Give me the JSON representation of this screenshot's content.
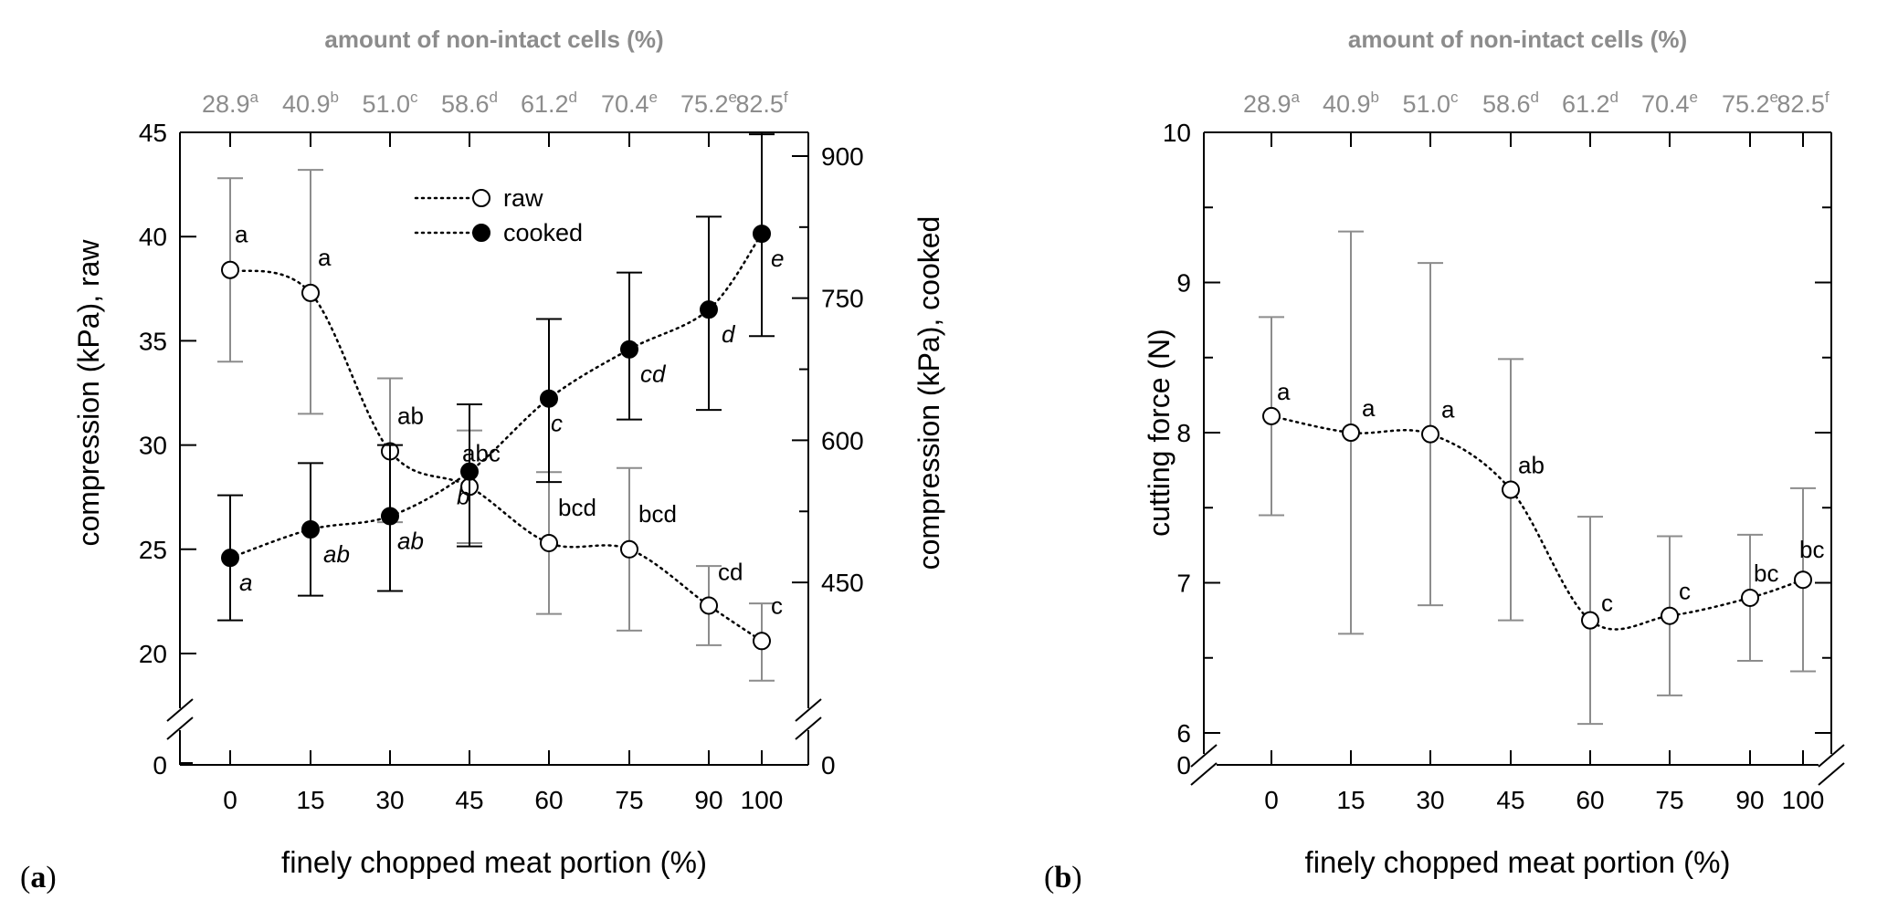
{
  "panels": [
    {
      "label_open": "(",
      "label_letter": "a",
      "label_close": ")"
    },
    {
      "label_open": "(",
      "label_letter": "b",
      "label_close": ")"
    }
  ],
  "colors": {
    "axis": "#000000",
    "grey_text": "#8c8c8c",
    "error_bar_raw": "#8c8c8c",
    "error_bar_cooked": "#000000"
  },
  "chart_data": [
    {
      "type": "line",
      "top_axis_title": "amount of non-intact cells (%)",
      "top_ticks": [
        {
          "v": "28.9",
          "s": "a"
        },
        {
          "v": "40.9",
          "s": "b"
        },
        {
          "v": "51.0",
          "s": "c"
        },
        {
          "v": "58.6",
          "s": "d"
        },
        {
          "v": "61.2",
          "s": "d"
        },
        {
          "v": "70.4",
          "s": "e"
        },
        {
          "v": "75.2",
          "s": "e"
        },
        {
          "v": "82.5",
          "s": "f"
        }
      ],
      "xlabel": "finely chopped meat portion  (%)",
      "categories": [
        "0",
        "15",
        "30",
        "45",
        "60",
        "75",
        "90",
        "100"
      ],
      "ylabel": "compression (kPa), raw",
      "y2label": "compression (kPa), cooked",
      "ylim": [
        20,
        45
      ],
      "y_ticks": [
        "20",
        "25",
        "30",
        "35",
        "40",
        "45"
      ],
      "y_break_tick": "0",
      "y2lim": [
        375,
        925
      ],
      "y2_ticks": [
        "450",
        "600",
        "750",
        "900"
      ],
      "y2_break_tick": "0",
      "legend": {
        "position": "top-center",
        "entries": [
          "raw",
          "cooked"
        ]
      },
      "series": [
        {
          "name": "raw",
          "marker": "open-circle",
          "axis": "left",
          "values": [
            38.4,
            37.3,
            29.7,
            28.0,
            25.3,
            25.0,
            22.3,
            20.6
          ],
          "err_low": [
            34.0,
            31.5,
            26.3,
            25.3,
            21.9,
            21.1,
            20.4,
            18.7
          ],
          "err_high": [
            42.8,
            43.2,
            33.2,
            30.7,
            28.7,
            28.9,
            24.2,
            22.4
          ],
          "letters": [
            "a",
            "a",
            "ab",
            "abc",
            "bcd",
            "bcd",
            "cd",
            "c"
          ]
        },
        {
          "name": "cooked",
          "marker": "filled-circle",
          "axis": "right",
          "values": [
            476,
            506,
            520,
            567,
            644,
            696,
            738,
            818
          ],
          "err_low": [
            410,
            436,
            441,
            488,
            556,
            622,
            632,
            710
          ],
          "err_high": [
            542,
            576,
            595,
            638,
            728,
            777,
            836,
            923
          ],
          "letters": [
            "a",
            "ab",
            "ab",
            "b",
            "c",
            "cd",
            "d",
            "e"
          ]
        }
      ]
    },
    {
      "type": "line",
      "top_axis_title": "amount of non-intact cells (%)",
      "top_ticks": [
        {
          "v": "28.9",
          "s": "a"
        },
        {
          "v": "40.9",
          "s": "b"
        },
        {
          "v": "51.0",
          "s": "c"
        },
        {
          "v": "58.6",
          "s": "d"
        },
        {
          "v": "61.2",
          "s": "d"
        },
        {
          "v": "70.4",
          "s": "e"
        },
        {
          "v": "75.2",
          "s": "e"
        },
        {
          "v": "82.5",
          "s": "f"
        }
      ],
      "xlabel": "finely chopped meat portion  (%)",
      "categories": [
        "0",
        "15",
        "30",
        "45",
        "60",
        "75",
        "90",
        "100"
      ],
      "ylabel": "cutting force (N)",
      "ylim": [
        6,
        10
      ],
      "y_ticks": [
        "6",
        "7",
        "8",
        "9",
        "10"
      ],
      "y_break_tick": "0",
      "series": [
        {
          "name": "",
          "marker": "open-circle",
          "axis": "left",
          "values": [
            8.11,
            8.0,
            7.99,
            7.62,
            6.75,
            6.78,
            6.9,
            7.02
          ],
          "err_low": [
            7.45,
            6.66,
            6.85,
            6.75,
            6.06,
            6.25,
            6.48,
            6.41
          ],
          "err_high": [
            8.77,
            9.34,
            9.13,
            8.49,
            7.44,
            7.31,
            7.32,
            7.63
          ],
          "letters": [
            "a",
            "a",
            "a",
            "ab",
            "c",
            "c",
            "bc",
            "bc"
          ]
        }
      ]
    }
  ]
}
